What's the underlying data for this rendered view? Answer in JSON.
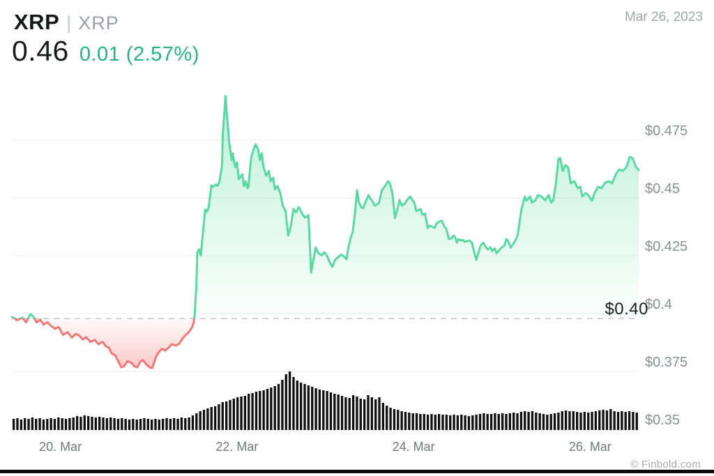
{
  "header": {
    "symbol": "XRP",
    "separator": "|",
    "pair": "XRP",
    "price": "0.46",
    "change": "0.01 (2.57%)",
    "date": "Mar 26, 2023"
  },
  "footer": {
    "credit": "© Finbold.com"
  },
  "colors": {
    "green_line": "#59d9a1",
    "green_fill": "96,219,162",
    "red_line": "#f27878",
    "red_fill": "242,118,118",
    "green_text": "#24b47d",
    "grid": "#ececee",
    "dash": "#d2d3d5",
    "volume": "#101010"
  },
  "chart_data": {
    "type": "line",
    "subtype": "price-line-with-volume-bars",
    "x_unit": "day of March 2023",
    "y_unit": "USD",
    "x_range_days": [
      19.45,
      26.55
    ],
    "ylim": [
      0.3497,
      0.501
    ],
    "grid": "horizontal-only",
    "legend": "none",
    "y_ticks": [
      {
        "label": "$0.475",
        "value": 0.475
      },
      {
        "label": "$0.45",
        "value": 0.45
      },
      {
        "label": "$0.425",
        "value": 0.425
      },
      {
        "label": "$0.4",
        "value": 0.4
      },
      {
        "label": "$0.375",
        "value": 0.375
      },
      {
        "label": "$0.35",
        "value": 0.35
      }
    ],
    "x_ticks": [
      {
        "label": "20. Mar",
        "day": 20
      },
      {
        "label": "22. Mar",
        "day": 22
      },
      {
        "label": "24. Mar",
        "day": 24
      },
      {
        "label": "26. Mar",
        "day": 26
      }
    ],
    "baseline": {
      "label": "$0.40",
      "value": 0.3979
    },
    "price_series": [
      [
        19.45,
        0.3985
      ],
      [
        19.48,
        0.398
      ],
      [
        19.51,
        0.3971
      ],
      [
        19.57,
        0.3983
      ],
      [
        19.61,
        0.3962
      ],
      [
        19.66,
        0.3998
      ],
      [
        19.69,
        0.3989
      ],
      [
        19.73,
        0.3962
      ],
      [
        19.77,
        0.3975
      ],
      [
        19.81,
        0.3952
      ],
      [
        19.85,
        0.3963
      ],
      [
        19.9,
        0.3945
      ],
      [
        19.94,
        0.3935
      ],
      [
        19.98,
        0.3942
      ],
      [
        20.03,
        0.3908
      ],
      [
        20.08,
        0.392
      ],
      [
        20.13,
        0.3896
      ],
      [
        20.17,
        0.3912
      ],
      [
        20.21,
        0.3906
      ],
      [
        20.25,
        0.3889
      ],
      [
        20.29,
        0.3898
      ],
      [
        20.34,
        0.3878
      ],
      [
        20.39,
        0.3886
      ],
      [
        20.43,
        0.3868
      ],
      [
        20.48,
        0.3878
      ],
      [
        20.51,
        0.386
      ],
      [
        20.55,
        0.3852
      ],
      [
        20.58,
        0.3828
      ],
      [
        20.62,
        0.382
      ],
      [
        20.66,
        0.379
      ],
      [
        20.69,
        0.3768
      ],
      [
        20.72,
        0.3772
      ],
      [
        20.76,
        0.3795
      ],
      [
        20.8,
        0.3788
      ],
      [
        20.84,
        0.3772
      ],
      [
        20.87,
        0.3768
      ],
      [
        20.9,
        0.379
      ],
      [
        20.93,
        0.38
      ],
      [
        20.97,
        0.3782
      ],
      [
        21.01,
        0.3768
      ],
      [
        21.04,
        0.3765
      ],
      [
        21.08,
        0.381
      ],
      [
        21.11,
        0.3832
      ],
      [
        21.15,
        0.3848
      ],
      [
        21.19,
        0.384
      ],
      [
        21.23,
        0.3855
      ],
      [
        21.26,
        0.3868
      ],
      [
        21.31,
        0.3862
      ],
      [
        21.35,
        0.3872
      ],
      [
        21.38,
        0.3892
      ],
      [
        21.42,
        0.3908
      ],
      [
        21.45,
        0.3918
      ],
      [
        21.49,
        0.394
      ],
      [
        21.51,
        0.3962
      ],
      [
        21.52,
        0.399
      ],
      [
        21.54,
        0.412
      ],
      [
        21.55,
        0.4262
      ],
      [
        21.57,
        0.4278
      ],
      [
        21.59,
        0.4252
      ],
      [
        21.61,
        0.4335
      ],
      [
        21.64,
        0.445
      ],
      [
        21.66,
        0.444
      ],
      [
        21.68,
        0.4462
      ],
      [
        21.71,
        0.4555
      ],
      [
        21.73,
        0.4548
      ],
      [
        21.76,
        0.4558
      ],
      [
        21.78,
        0.4552
      ],
      [
        21.8,
        0.457
      ],
      [
        21.83,
        0.464
      ],
      [
        21.84,
        0.478
      ],
      [
        21.87,
        0.494
      ],
      [
        21.89,
        0.484
      ],
      [
        21.91,
        0.4744
      ],
      [
        21.94,
        0.4663
      ],
      [
        21.95,
        0.4693
      ],
      [
        21.98,
        0.4633
      ],
      [
        22.0,
        0.4654
      ],
      [
        22.02,
        0.4581
      ],
      [
        22.06,
        0.4602
      ],
      [
        22.08,
        0.4551
      ],
      [
        22.1,
        0.4572
      ],
      [
        22.12,
        0.4542
      ],
      [
        22.13,
        0.4551
      ],
      [
        22.16,
        0.4672
      ],
      [
        22.18,
        0.4702
      ],
      [
        22.21,
        0.4732
      ],
      [
        22.24,
        0.4708
      ],
      [
        22.26,
        0.4663
      ],
      [
        22.28,
        0.4693
      ],
      [
        22.3,
        0.4633
      ],
      [
        22.33,
        0.4596
      ],
      [
        22.36,
        0.4617
      ],
      [
        22.38,
        0.4572
      ],
      [
        22.41,
        0.4587
      ],
      [
        22.43,
        0.4536
      ],
      [
        22.46,
        0.4551
      ],
      [
        22.49,
        0.4521
      ],
      [
        22.52,
        0.4465
      ],
      [
        22.55,
        0.4445
      ],
      [
        22.58,
        0.4338
      ],
      [
        22.61,
        0.4378
      ],
      [
        22.64,
        0.4452
      ],
      [
        22.67,
        0.4437
      ],
      [
        22.7,
        0.4461
      ],
      [
        22.74,
        0.443
      ],
      [
        22.77,
        0.4415
      ],
      [
        22.81,
        0.4425
      ],
      [
        22.84,
        0.4177
      ],
      [
        22.87,
        0.424
      ],
      [
        22.89,
        0.4286
      ],
      [
        22.92,
        0.4262
      ],
      [
        22.96,
        0.4252
      ],
      [
        22.99,
        0.4265
      ],
      [
        23.02,
        0.425
      ],
      [
        23.05,
        0.4222
      ],
      [
        23.08,
        0.4202
      ],
      [
        23.11,
        0.4232
      ],
      [
        23.15,
        0.4245
      ],
      [
        23.18,
        0.4255
      ],
      [
        23.21,
        0.4248
      ],
      [
        23.24,
        0.4235
      ],
      [
        23.26,
        0.4282
      ],
      [
        23.29,
        0.4331
      ],
      [
        23.31,
        0.4352
      ],
      [
        23.34,
        0.445
      ],
      [
        23.36,
        0.4533
      ],
      [
        23.38,
        0.4482
      ],
      [
        23.41,
        0.4458
      ],
      [
        23.43,
        0.4455
      ],
      [
        23.45,
        0.4478
      ],
      [
        23.49,
        0.4512
      ],
      [
        23.51,
        0.4498
      ],
      [
        23.53,
        0.4488
      ],
      [
        23.56,
        0.4467
      ],
      [
        23.59,
        0.4472
      ],
      [
        23.61,
        0.448
      ],
      [
        23.64,
        0.4533
      ],
      [
        23.68,
        0.4552
      ],
      [
        23.71,
        0.4572
      ],
      [
        23.73,
        0.4565
      ],
      [
        23.76,
        0.4521
      ],
      [
        23.79,
        0.4413
      ],
      [
        23.82,
        0.4455
      ],
      [
        23.84,
        0.4491
      ],
      [
        23.87,
        0.4467
      ],
      [
        23.9,
        0.4475
      ],
      [
        23.92,
        0.4488
      ],
      [
        23.96,
        0.4506
      ],
      [
        23.98,
        0.4495
      ],
      [
        24.01,
        0.4478
      ],
      [
        24.03,
        0.4443
      ],
      [
        24.06,
        0.4448
      ],
      [
        24.08,
        0.4452
      ],
      [
        24.1,
        0.4428
      ],
      [
        24.13,
        0.4432
      ],
      [
        24.16,
        0.437
      ],
      [
        24.18,
        0.438
      ],
      [
        24.21,
        0.4376
      ],
      [
        24.24,
        0.437
      ],
      [
        24.26,
        0.439
      ],
      [
        24.29,
        0.4398
      ],
      [
        24.32,
        0.4401
      ],
      [
        24.35,
        0.4375
      ],
      [
        24.37,
        0.4367
      ],
      [
        24.4,
        0.4322
      ],
      [
        24.43,
        0.4325
      ],
      [
        24.45,
        0.4337
      ],
      [
        24.47,
        0.4331
      ],
      [
        24.49,
        0.4307
      ],
      [
        24.51,
        0.4322
      ],
      [
        24.54,
        0.4316
      ],
      [
        24.56,
        0.4318
      ],
      [
        24.58,
        0.431
      ],
      [
        24.61,
        0.4314
      ],
      [
        24.63,
        0.4316
      ],
      [
        24.66,
        0.4307
      ],
      [
        24.68,
        0.4276
      ],
      [
        24.71,
        0.4232
      ],
      [
        24.73,
        0.4258
      ],
      [
        24.76,
        0.4295
      ],
      [
        24.79,
        0.4307
      ],
      [
        24.81,
        0.4292
      ],
      [
        24.84,
        0.4277
      ],
      [
        24.87,
        0.4286
      ],
      [
        24.89,
        0.427
      ],
      [
        24.92,
        0.4282
      ],
      [
        24.94,
        0.426
      ],
      [
        24.97,
        0.4275
      ],
      [
        25.0,
        0.4286
      ],
      [
        25.03,
        0.4295
      ],
      [
        25.05,
        0.4322
      ],
      [
        25.07,
        0.4315
      ],
      [
        25.1,
        0.4285
      ],
      [
        25.13,
        0.4302
      ],
      [
        25.16,
        0.4322
      ],
      [
        25.18,
        0.434
      ],
      [
        25.22,
        0.4448
      ],
      [
        25.26,
        0.4506
      ],
      [
        25.28,
        0.4488
      ],
      [
        25.32,
        0.4506
      ],
      [
        25.34,
        0.448
      ],
      [
        25.38,
        0.449
      ],
      [
        25.41,
        0.4512
      ],
      [
        25.45,
        0.4506
      ],
      [
        25.49,
        0.449
      ],
      [
        25.53,
        0.4512
      ],
      [
        25.56,
        0.448
      ],
      [
        25.58,
        0.4488
      ],
      [
        25.61,
        0.4555
      ],
      [
        25.64,
        0.4669
      ],
      [
        25.66,
        0.4672
      ],
      [
        25.69,
        0.4617
      ],
      [
        25.72,
        0.4642
      ],
      [
        25.75,
        0.4633
      ],
      [
        25.78,
        0.4563
      ],
      [
        25.82,
        0.4572
      ],
      [
        25.86,
        0.4542
      ],
      [
        25.89,
        0.4548
      ],
      [
        25.91,
        0.4506
      ],
      [
        25.95,
        0.4521
      ],
      [
        25.98,
        0.4512
      ],
      [
        26.02,
        0.4488
      ],
      [
        26.05,
        0.4521
      ],
      [
        26.09,
        0.4548
      ],
      [
        26.13,
        0.4542
      ],
      [
        26.17,
        0.4566
      ],
      [
        26.21,
        0.4572
      ],
      [
        26.25,
        0.4563
      ],
      [
        26.29,
        0.4602
      ],
      [
        26.33,
        0.4623
      ],
      [
        26.37,
        0.4617
      ],
      [
        26.41,
        0.4633
      ],
      [
        26.45,
        0.4678
      ],
      [
        26.48,
        0.4672
      ],
      [
        26.52,
        0.4633
      ],
      [
        26.55,
        0.462
      ]
    ],
    "volume": {
      "type": "bar",
      "unit": "relative volume (0-100)",
      "values": [
        16,
        17,
        15,
        17,
        16,
        18,
        16,
        17,
        15,
        16,
        17,
        16,
        18,
        17,
        16,
        17,
        18,
        20,
        19,
        21,
        20,
        19,
        18,
        19,
        18,
        17,
        18,
        17,
        16,
        17,
        16,
        15,
        16,
        15,
        16,
        17,
        16,
        15,
        16,
        15,
        16,
        17,
        16,
        17,
        16,
        18,
        17,
        18,
        21,
        24,
        27,
        29,
        31,
        33,
        34,
        37,
        40,
        41,
        43,
        45,
        47,
        48,
        49,
        52,
        53,
        55,
        56,
        57,
        59,
        61,
        63,
        66,
        72,
        80,
        84,
        76,
        71,
        68,
        66,
        64,
        62,
        60,
        58,
        57,
        56,
        54,
        52,
        51,
        49,
        47,
        46,
        50,
        48,
        45,
        44,
        50,
        47,
        44,
        47,
        39,
        35,
        32,
        30,
        29,
        27,
        26,
        25,
        24,
        24,
        23,
        23,
        22,
        23,
        22,
        23,
        22,
        22,
        21,
        22,
        21,
        22,
        21,
        20,
        21,
        22,
        23,
        24,
        23,
        23,
        24,
        23,
        24,
        23,
        24,
        25,
        24,
        26,
        27,
        26,
        27,
        25,
        24,
        23,
        22,
        23,
        24,
        25,
        27,
        28,
        27,
        27,
        26,
        25,
        26,
        25,
        26,
        27,
        28,
        29,
        28,
        30,
        27,
        26,
        27,
        26,
        27,
        26,
        25
      ]
    }
  }
}
